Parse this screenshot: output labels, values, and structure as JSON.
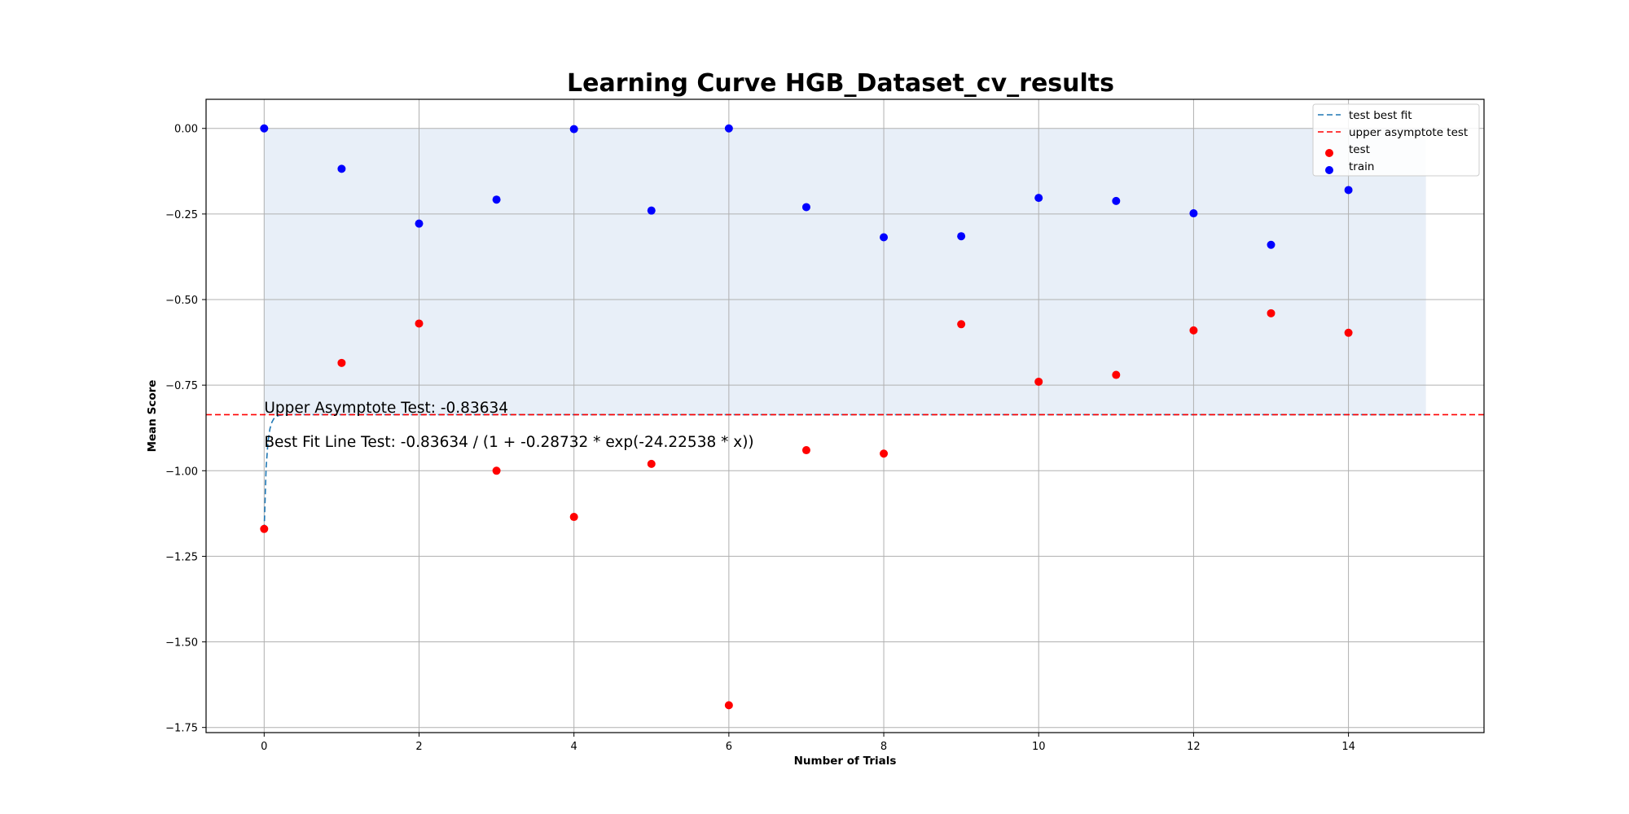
{
  "chart_data": {
    "type": "scatter",
    "title": "Learning Curve HGB_Dataset_cv_results",
    "xlabel": "Number of Trials",
    "ylabel": "Mean Score",
    "xlim": [
      -0.75,
      15.75
    ],
    "ylim": [
      -1.765,
      0.085
    ],
    "xticks": [
      0,
      2,
      4,
      6,
      8,
      10,
      12,
      14
    ],
    "yticks": [
      0.0,
      -0.25,
      -0.5,
      -0.75,
      -1.0,
      -1.25,
      -1.5,
      -1.75
    ],
    "xtick_labels": [
      "0",
      "2",
      "4",
      "6",
      "8",
      "10",
      "12",
      "14"
    ],
    "ytick_labels": [
      "0.00",
      "−0.25",
      "−0.50",
      "−0.75",
      "−1.00",
      "−1.25",
      "−1.50",
      "−1.75"
    ],
    "grid": true,
    "legend_position": "top-right",
    "shaded_region": {
      "x": [
        0,
        15
      ],
      "y": [
        -0.83634,
        0.0
      ],
      "color": "#dce7f4"
    },
    "series": [
      {
        "name": "test best fit",
        "kind": "line",
        "style": "dashed",
        "color": "#1f77b4",
        "formula": {
          "asymptote": -0.83634,
          "coefficient": -0.28732,
          "rate": -24.22538
        },
        "x_range": [
          0,
          15
        ]
      },
      {
        "name": "upper asymptote test",
        "kind": "hline",
        "style": "dashed",
        "color": "#ff0000",
        "y": -0.83634
      },
      {
        "name": "test",
        "kind": "scatter",
        "color": "#ff0000",
        "x": [
          0,
          1,
          2,
          3,
          4,
          5,
          6,
          7,
          8,
          9,
          10,
          11,
          12,
          13,
          14
        ],
        "y": [
          -1.17,
          -0.685,
          -0.57,
          -1.0,
          -1.135,
          -0.98,
          -1.685,
          -0.94,
          -0.95,
          -0.572,
          -0.74,
          -0.72,
          -0.59,
          -0.54,
          -0.597
        ]
      },
      {
        "name": "train",
        "kind": "scatter",
        "color": "#0000ff",
        "x": [
          0,
          1,
          2,
          3,
          4,
          5,
          6,
          7,
          8,
          9,
          10,
          11,
          12,
          13,
          14
        ],
        "y": [
          0.0,
          -0.118,
          -0.278,
          -0.208,
          -0.002,
          -0.24,
          0.0,
          -0.23,
          -0.318,
          -0.315,
          -0.203,
          -0.212,
          -0.248,
          -0.34,
          -0.18
        ]
      }
    ],
    "annotations": [
      {
        "text": "Upper Asymptote Test: -0.83634",
        "x": 0,
        "y": -0.8
      },
      {
        "text": "Best Fit Line Test: -0.83634 / (1 + -0.28732 * exp(-24.22538 * x))",
        "x": 0,
        "y": -0.9
      }
    ]
  }
}
